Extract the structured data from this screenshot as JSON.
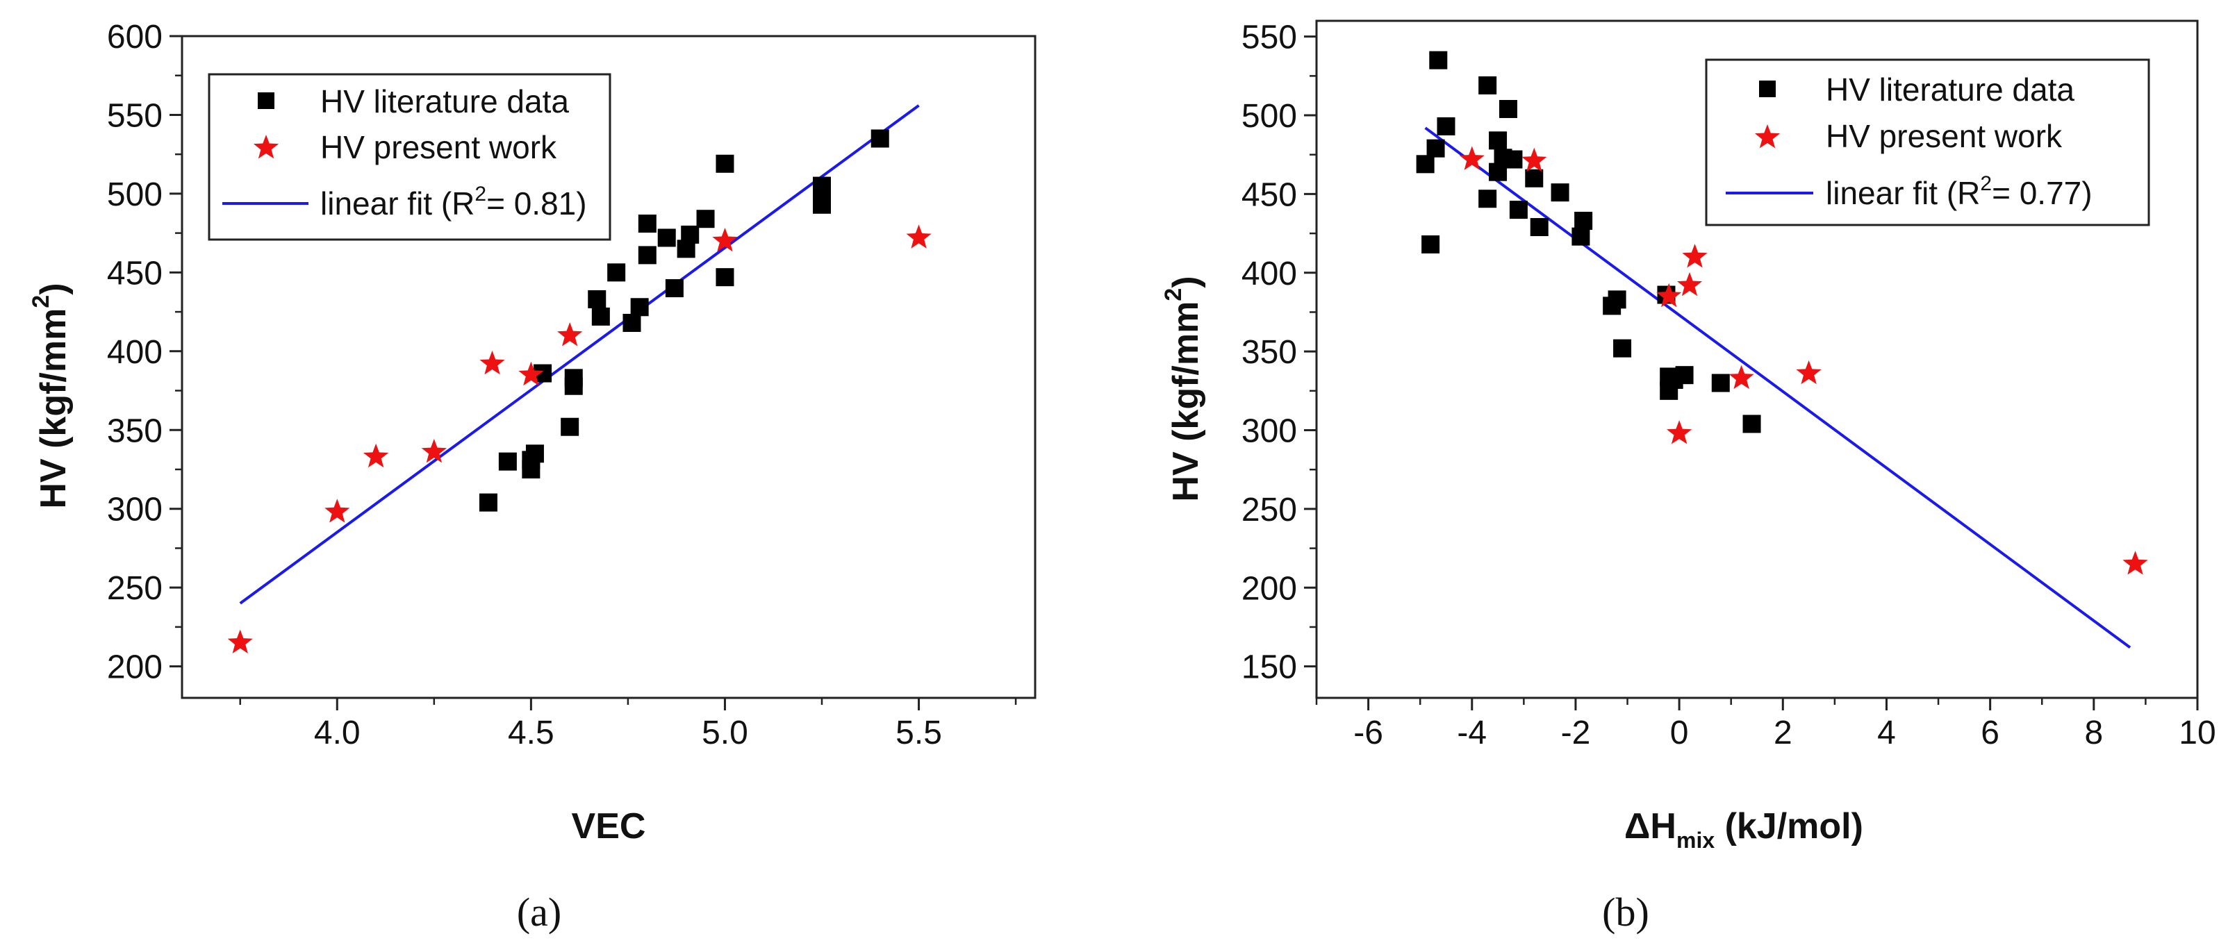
{
  "chart_data": [
    {
      "type": "scatter",
      "panel_label": "(a)",
      "xlabel": "VEC",
      "ylabel": "HV (kgf/mm",
      "ylabel_sup": "2",
      "ylabel_end": ")",
      "xlim": [
        3.6,
        5.8
      ],
      "ylim": [
        180,
        600
      ],
      "xticks": [
        4.0,
        4.5,
        5.0,
        5.5
      ],
      "xtick_labels": [
        "4.0",
        "4.5",
        "5.0",
        "5.5"
      ],
      "yticks": [
        200,
        250,
        300,
        350,
        400,
        450,
        500,
        550,
        600
      ],
      "ytick_labels": [
        "200",
        "250",
        "300",
        "350",
        "400",
        "450",
        "500",
        "550",
        "600"
      ],
      "legend_position": "top-left",
      "legend": {
        "literature": "HV literature data",
        "present": "HV present work",
        "fit_main": "linear fit (R",
        "fit_sup": "2",
        "fit_end": "= 0.81)"
      },
      "colors": {
        "literature": "#000000",
        "present": "#ee1111",
        "fit": "#1a1aee"
      },
      "series": [
        {
          "name": "HV literature data",
          "marker": "square",
          "points": [
            [
              4.39,
              304
            ],
            [
              4.44,
              330
            ],
            [
              4.5,
              325
            ],
            [
              4.5,
              331
            ],
            [
              4.51,
              335
            ],
            [
              4.53,
              386
            ],
            [
              4.6,
              352
            ],
            [
              4.61,
              378
            ],
            [
              4.61,
              383
            ],
            [
              4.67,
              433
            ],
            [
              4.68,
              422
            ],
            [
              4.72,
              450
            ],
            [
              4.76,
              418
            ],
            [
              4.78,
              428
            ],
            [
              4.8,
              461
            ],
            [
              4.8,
              481
            ],
            [
              4.85,
              472
            ],
            [
              4.87,
              440
            ],
            [
              4.9,
              465
            ],
            [
              4.91,
              474
            ],
            [
              4.95,
              484
            ],
            [
              5.0,
              447
            ],
            [
              5.0,
              519
            ],
            [
              5.25,
              493
            ],
            [
              5.25,
              499
            ],
            [
              5.25,
              505
            ],
            [
              5.4,
              535
            ]
          ]
        },
        {
          "name": "HV present work",
          "marker": "star",
          "points": [
            [
              3.75,
              215
            ],
            [
              4.0,
              298
            ],
            [
              4.1,
              333
            ],
            [
              4.25,
              336
            ],
            [
              4.4,
              392
            ],
            [
              4.5,
              385
            ],
            [
              4.6,
              410
            ],
            [
              5.0,
              470
            ],
            [
              5.5,
              472
            ]
          ]
        },
        {
          "name": "linear fit (R2= 0.81)",
          "type": "line",
          "points": [
            [
              3.75,
              240
            ],
            [
              5.5,
              556
            ]
          ]
        }
      ]
    },
    {
      "type": "scatter",
      "panel_label": "(b)",
      "xlabel": "ΔH",
      "xlabel_sub": "mix",
      "xlabel_end": " (kJ/mol)",
      "ylabel": "HV (kgf/mm",
      "ylabel_sup": "2",
      "ylabel_end": ")",
      "xlim": [
        -7,
        10
      ],
      "ylim": [
        130,
        560
      ],
      "xticks": [
        -6,
        -4,
        -2,
        0,
        2,
        4,
        6,
        8,
        10
      ],
      "xtick_labels": [
        "-6",
        "-4",
        "-2",
        "0",
        "2",
        "4",
        "6",
        "8",
        "10"
      ],
      "yticks": [
        150,
        200,
        250,
        300,
        350,
        400,
        450,
        500,
        550
      ],
      "ytick_labels": [
        "150",
        "200",
        "250",
        "300",
        "350",
        "400",
        "450",
        "500",
        "550"
      ],
      "legend_position": "top-right",
      "legend": {
        "literature": "HV literature data",
        "present": "HV present work",
        "fit_main": "linear fit (R",
        "fit_sup": "2",
        "fit_end": "= 0.77)"
      },
      "colors": {
        "literature": "#000000",
        "present": "#ee1111",
        "fit": "#1a1aee"
      },
      "series": [
        {
          "name": "HV literature data",
          "marker": "square",
          "points": [
            [
              -4.9,
              469
            ],
            [
              -4.8,
              418
            ],
            [
              -4.65,
              535
            ],
            [
              -4.7,
              479
            ],
            [
              -4.5,
              493
            ],
            [
              -3.7,
              519
            ],
            [
              -3.7,
              447
            ],
            [
              -3.5,
              464
            ],
            [
              -3.5,
              484
            ],
            [
              -3.4,
              473
            ],
            [
              -3.3,
              504
            ],
            [
              -3.2,
              472
            ],
            [
              -3.1,
              440
            ],
            [
              -2.8,
              460
            ],
            [
              -2.7,
              429
            ],
            [
              -2.3,
              451
            ],
            [
              -1.85,
              433
            ],
            [
              -1.9,
              423
            ],
            [
              -1.3,
              379
            ],
            [
              -1.2,
              383
            ],
            [
              -1.1,
              352
            ],
            [
              -0.25,
              386
            ],
            [
              -0.2,
              325
            ],
            [
              -0.2,
              334
            ],
            [
              -0.1,
              332
            ],
            [
              0.1,
              335
            ],
            [
              0.8,
              330
            ],
            [
              1.4,
              304
            ]
          ]
        },
        {
          "name": "HV present work",
          "marker": "star",
          "points": [
            [
              -4.0,
              472
            ],
            [
              -2.8,
              471
            ],
            [
              -0.2,
              385
            ],
            [
              0.3,
              410
            ],
            [
              0.2,
              392
            ],
            [
              0.0,
              298
            ],
            [
              1.2,
              333
            ],
            [
              2.5,
              336
            ],
            [
              8.8,
              215
            ]
          ]
        },
        {
          "name": "linear fit (R2= 0.77)",
          "type": "line",
          "points": [
            [
              -4.9,
              492
            ],
            [
              8.7,
              162
            ]
          ]
        }
      ]
    }
  ]
}
